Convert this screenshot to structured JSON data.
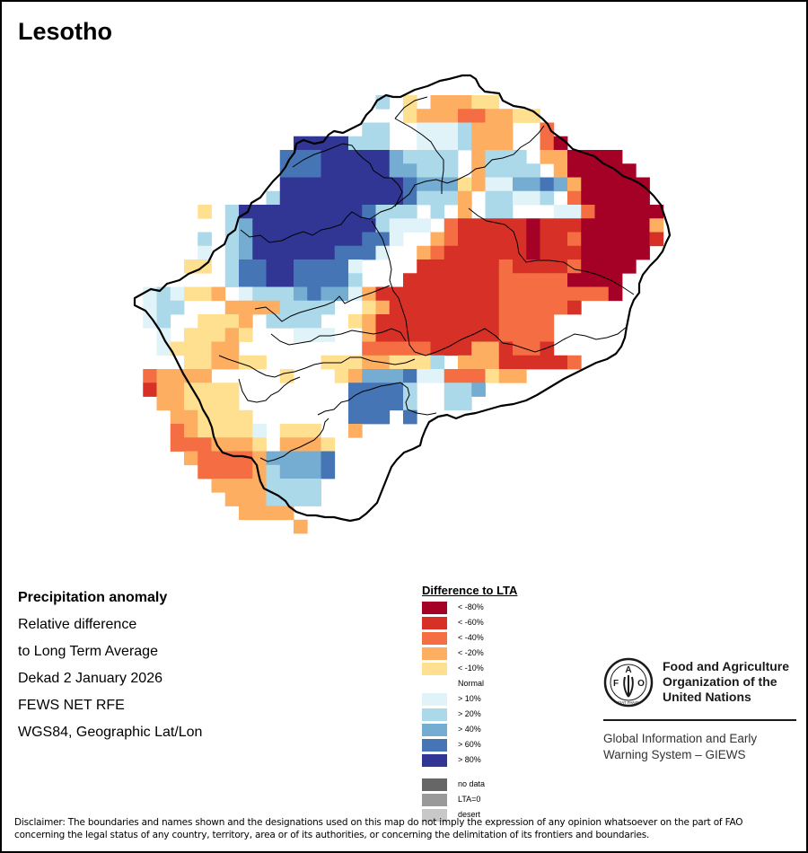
{
  "title": "Lesotho",
  "info": {
    "heading": "Precipitation anomaly",
    "lines": [
      "Relative difference",
      "to Long Term Average",
      "Dekad 2 January 2026",
      "FEWS NET RFE",
      "WGS84, Geographic Lat/Lon"
    ]
  },
  "legend": {
    "title": "Difference to LTA",
    "classes": [
      {
        "code": "A",
        "label": "< -80%",
        "color": "#a50026"
      },
      {
        "code": "B",
        "label": "< -60%",
        "color": "#d73027"
      },
      {
        "code": "C",
        "label": "< -40%",
        "color": "#f46d43"
      },
      {
        "code": "D",
        "label": "< -20%",
        "color": "#fdae61"
      },
      {
        "code": "E",
        "label": "< -10%",
        "color": "#fee090"
      },
      {
        "code": "N",
        "label": "Normal",
        "color": "#ffffff"
      },
      {
        "code": "F",
        "label": "> 10%",
        "color": "#e0f3f8"
      },
      {
        "code": "G",
        "label": "> 20%",
        "color": "#abd9e9"
      },
      {
        "code": "H",
        "label": "> 40%",
        "color": "#74add1"
      },
      {
        "code": "I",
        "label": "> 60%",
        "color": "#4575b4"
      },
      {
        "code": "J",
        "label": "> 80%",
        "color": "#313695"
      }
    ],
    "extra": [
      {
        "label": "no data",
        "color": "#666666"
      },
      {
        "label": "LTA=0",
        "color": "#999999"
      },
      {
        "label": "desert",
        "color": "#c8c8c8"
      }
    ]
  },
  "map_grid": {
    "description": "Relative precipitation anomaly raster; each character is one cell coded by legend class (space = outside country)",
    "rows": [
      "                  G E DDDEE              ",
      "                    EDDDCCDDEE          ",
      "                 GGNNFFFGDDDNNC         ",
      "            JJJJGGGNNFFFGDDDNNCA        ",
      "           IIIJJJJJHGGGGNDGGGNDDAAAA    ",
      "           IIIJJJJJHHGGGNDGGGGNDAAAAA   ",
      "           JJJJJJJJJIHHHEDFFHHIHDAAAAA  ",
      "          GJJJJJJJJJIGGGDNGGFFGNCAAAAA  ",
      "     ENGJJJJJJJJJIGGGNGNDNGGNNNFFCAAAAA ",
      "      NGHJJJJJJJJJGFFFNCBBBBBABBBAAAAAD ",
      "     GNGHJJJJJJJJIIFNNDCBBBBBABBCAAAAAB ",
      "     FNGHJJJJJJIIIFNNDCBBBBBBABBBAAAAA  ",
      "    EENGIIJJIIIIFNNNNBBBBBBCBBBBCAAAA   ",
      "   NNNNGIIJJIIIIGNNNBBBBBBBCCCCCAAAA    ",
      " FGFEEDNFGGGHIHHFDBBBBBBBBBCCCCCCCCA    ",
      " FGGNNNDDDDGGGGNNEDBBBBBBBBCCCCCB       ",
      " FGNNEEEDNGGGGNNEDBBBBBBBBBCCCC         ",
      "  FNEEEDENNNFFFNNDBBBBBBBBBCCCC         ",
      "  FEEEDDNNNNNNNNNCCCCCBBBDDBCCB         ",
      "    EEDDEENNNNEEEDDEEEGNDDDBBBBBC       ",
      " CDDDDNNNNNENNNEDHHHIFFCCCEDDN          ",
      " BDDEEEENNNNNNNNIIIIGNNGGHN             ",
      "  DDEEEENNNNNNNNIIIIGNNGG               ",
      "   DDEEEENNNNNN IIINI                   ",
      "   CDEEEEFNEEENND                       ",
      "   CCCDDDENDDDE                         ",
      "    DCCCCDHHHHI                         ",
      "     CCCCDGHHHI                         ",
      "      DDDDGGGG                          ",
      "       DDDGGGG                          ",
      "        DDDDN                           ",
      "            D                           "
    ]
  },
  "logo": {
    "emblem_letters": [
      "F",
      "A",
      "O"
    ],
    "motto": "FIAT PANIS",
    "name_lines": [
      "Food and Agriculture",
      "Organization of the",
      "United Nations"
    ],
    "sub_lines": [
      "Global Information and Early",
      "Warning System – GIEWS"
    ]
  },
  "disclaimer": "Disclaimer: The boundaries and names shown and the designations used on this map do not imply the expression of any opinion whatsoever on the part of FAO concerning the legal status of any country, territory, area or of its authorities, or concerning the delimitation of its frontiers and boundaries."
}
